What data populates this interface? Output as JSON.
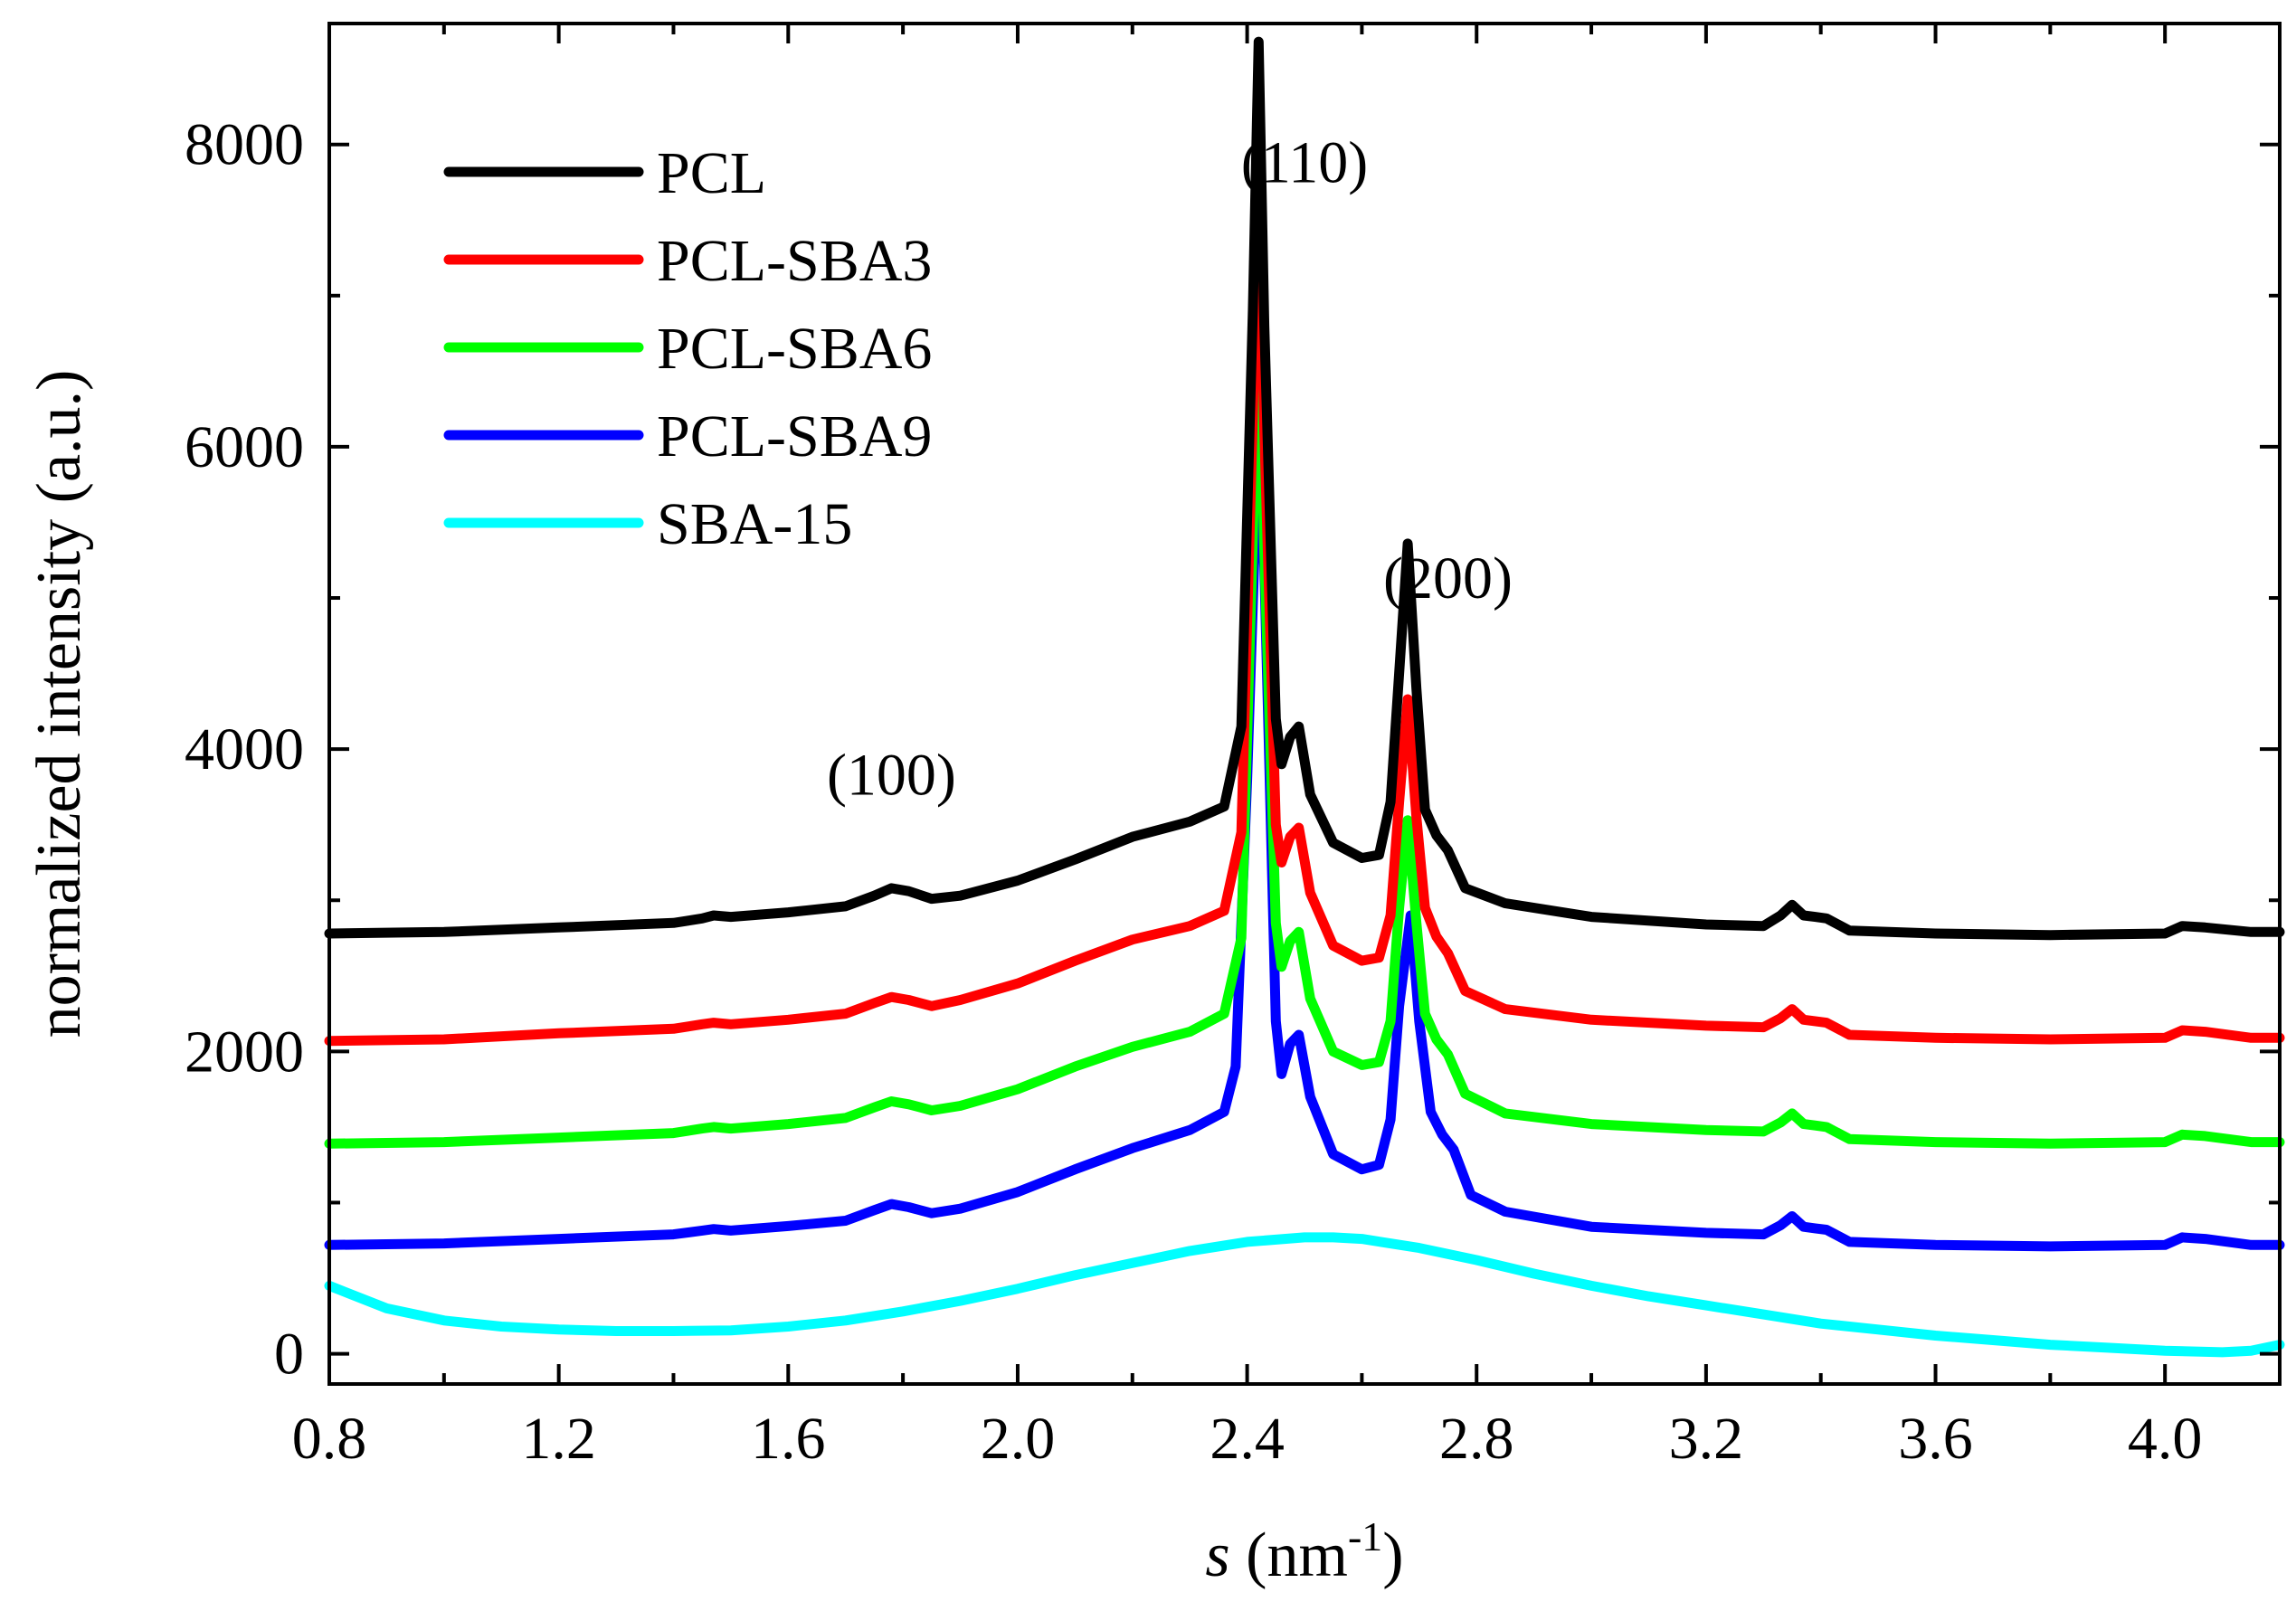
{
  "chart_data": {
    "type": "line",
    "xlabel_italic": "s",
    "xlabel_rest": " (nm",
    "xlabel_sup": "-1",
    "xlabel_close": ")",
    "ylabel": "normalized intensity (a.u.)",
    "xlim": [
      0.8,
      4.2
    ],
    "ylim": [
      -200,
      8800
    ],
    "xticks": [
      0.8,
      1.2,
      1.6,
      2.0,
      2.4,
      2.8,
      3.2,
      3.6,
      4.0
    ],
    "xtick_labels": [
      "0.8",
      "1.2",
      "1.6",
      "2.0",
      "2.4",
      "2.8",
      "3.2",
      "3.6",
      "4.0"
    ],
    "yticks": [
      0,
      2000,
      4000,
      6000,
      8000
    ],
    "ytick_labels": [
      "0",
      "2000",
      "4000",
      "6000",
      "8000"
    ],
    "legend_position": "top-left",
    "annotations": [
      {
        "text": "(100)",
        "x": 1.78,
        "y": 3700
      },
      {
        "text": "(110)",
        "x": 2.5,
        "y": 7750
      },
      {
        "text": "(200)",
        "x": 2.75,
        "y": 5000
      }
    ],
    "series": [
      {
        "name": "PCL",
        "color": "#000000",
        "points": [
          [
            0.8,
            2780
          ],
          [
            1.0,
            2790
          ],
          [
            1.2,
            2820
          ],
          [
            1.4,
            2850
          ],
          [
            1.45,
            2880
          ],
          [
            1.47,
            2900
          ],
          [
            1.5,
            2890
          ],
          [
            1.6,
            2920
          ],
          [
            1.7,
            2960
          ],
          [
            1.75,
            3030
          ],
          [
            1.78,
            3080
          ],
          [
            1.81,
            3060
          ],
          [
            1.85,
            3010
          ],
          [
            1.9,
            3030
          ],
          [
            2.0,
            3130
          ],
          [
            2.1,
            3270
          ],
          [
            2.2,
            3420
          ],
          [
            2.3,
            3520
          ],
          [
            2.36,
            3620
          ],
          [
            2.39,
            4150
          ],
          [
            2.41,
            6900
          ],
          [
            2.42,
            8680
          ],
          [
            2.43,
            6800
          ],
          [
            2.45,
            4200
          ],
          [
            2.46,
            3900
          ],
          [
            2.475,
            4080
          ],
          [
            2.49,
            4150
          ],
          [
            2.51,
            3700
          ],
          [
            2.55,
            3380
          ],
          [
            2.6,
            3280
          ],
          [
            2.63,
            3300
          ],
          [
            2.65,
            3650
          ],
          [
            2.665,
            4500
          ],
          [
            2.68,
            5360
          ],
          [
            2.695,
            4400
          ],
          [
            2.71,
            3600
          ],
          [
            2.73,
            3430
          ],
          [
            2.75,
            3330
          ],
          [
            2.78,
            3080
          ],
          [
            2.85,
            2980
          ],
          [
            3.0,
            2890
          ],
          [
            3.2,
            2840
          ],
          [
            3.3,
            2830
          ],
          [
            3.33,
            2900
          ],
          [
            3.35,
            2970
          ],
          [
            3.37,
            2900
          ],
          [
            3.39,
            2890
          ],
          [
            3.41,
            2880
          ],
          [
            3.45,
            2800
          ],
          [
            3.6,
            2780
          ],
          [
            3.8,
            2770
          ],
          [
            4.0,
            2780
          ],
          [
            4.03,
            2830
          ],
          [
            4.07,
            2820
          ],
          [
            4.15,
            2790
          ],
          [
            4.2,
            2790
          ]
        ]
      },
      {
        "name": "PCL-SBA3",
        "color": "#ff0000",
        "points": [
          [
            0.8,
            2070
          ],
          [
            1.0,
            2080
          ],
          [
            1.2,
            2120
          ],
          [
            1.4,
            2150
          ],
          [
            1.45,
            2180
          ],
          [
            1.47,
            2190
          ],
          [
            1.5,
            2180
          ],
          [
            1.6,
            2210
          ],
          [
            1.7,
            2250
          ],
          [
            1.75,
            2320
          ],
          [
            1.78,
            2360
          ],
          [
            1.81,
            2340
          ],
          [
            1.85,
            2300
          ],
          [
            1.9,
            2340
          ],
          [
            2.0,
            2450
          ],
          [
            2.1,
            2600
          ],
          [
            2.2,
            2740
          ],
          [
            2.3,
            2830
          ],
          [
            2.36,
            2930
          ],
          [
            2.39,
            3450
          ],
          [
            2.41,
            6200
          ],
          [
            2.42,
            7900
          ],
          [
            2.43,
            6100
          ],
          [
            2.45,
            3500
          ],
          [
            2.46,
            3250
          ],
          [
            2.475,
            3420
          ],
          [
            2.49,
            3480
          ],
          [
            2.51,
            3050
          ],
          [
            2.55,
            2700
          ],
          [
            2.6,
            2600
          ],
          [
            2.63,
            2620
          ],
          [
            2.65,
            2900
          ],
          [
            2.665,
            3650
          ],
          [
            2.68,
            4330
          ],
          [
            2.695,
            3550
          ],
          [
            2.71,
            2950
          ],
          [
            2.73,
            2760
          ],
          [
            2.75,
            2650
          ],
          [
            2.78,
            2400
          ],
          [
            2.85,
            2280
          ],
          [
            3.0,
            2210
          ],
          [
            3.2,
            2170
          ],
          [
            3.3,
            2160
          ],
          [
            3.33,
            2220
          ],
          [
            3.35,
            2280
          ],
          [
            3.37,
            2210
          ],
          [
            3.39,
            2200
          ],
          [
            3.41,
            2190
          ],
          [
            3.45,
            2110
          ],
          [
            3.6,
            2090
          ],
          [
            3.8,
            2080
          ],
          [
            4.0,
            2090
          ],
          [
            4.03,
            2140
          ],
          [
            4.07,
            2130
          ],
          [
            4.15,
            2090
          ],
          [
            4.2,
            2090
          ]
        ]
      },
      {
        "name": "PCL-SBA6",
        "color": "#00ff00",
        "points": [
          [
            0.8,
            1390
          ],
          [
            1.0,
            1400
          ],
          [
            1.2,
            1430
          ],
          [
            1.4,
            1460
          ],
          [
            1.45,
            1490
          ],
          [
            1.47,
            1500
          ],
          [
            1.5,
            1490
          ],
          [
            1.6,
            1520
          ],
          [
            1.7,
            1560
          ],
          [
            1.75,
            1630
          ],
          [
            1.78,
            1670
          ],
          [
            1.81,
            1650
          ],
          [
            1.85,
            1610
          ],
          [
            1.9,
            1640
          ],
          [
            2.0,
            1750
          ],
          [
            2.1,
            1900
          ],
          [
            2.2,
            2030
          ],
          [
            2.3,
            2130
          ],
          [
            2.36,
            2250
          ],
          [
            2.39,
            2750
          ],
          [
            2.41,
            5400
          ],
          [
            2.42,
            6950
          ],
          [
            2.43,
            5300
          ],
          [
            2.45,
            2850
          ],
          [
            2.46,
            2560
          ],
          [
            2.475,
            2730
          ],
          [
            2.49,
            2790
          ],
          [
            2.51,
            2350
          ],
          [
            2.55,
            2000
          ],
          [
            2.6,
            1910
          ],
          [
            2.63,
            1930
          ],
          [
            2.65,
            2200
          ],
          [
            2.665,
            2950
          ],
          [
            2.68,
            3530
          ],
          [
            2.695,
            2850
          ],
          [
            2.71,
            2250
          ],
          [
            2.73,
            2080
          ],
          [
            2.75,
            1980
          ],
          [
            2.78,
            1720
          ],
          [
            2.85,
            1590
          ],
          [
            3.0,
            1520
          ],
          [
            3.2,
            1480
          ],
          [
            3.3,
            1470
          ],
          [
            3.33,
            1530
          ],
          [
            3.35,
            1590
          ],
          [
            3.37,
            1520
          ],
          [
            3.39,
            1510
          ],
          [
            3.41,
            1500
          ],
          [
            3.45,
            1420
          ],
          [
            3.6,
            1400
          ],
          [
            3.8,
            1390
          ],
          [
            4.0,
            1400
          ],
          [
            4.03,
            1450
          ],
          [
            4.07,
            1440
          ],
          [
            4.15,
            1400
          ],
          [
            4.2,
            1400
          ]
        ]
      },
      {
        "name": "PCL-SBA9",
        "color": "#0000ff",
        "points": [
          [
            0.8,
            720
          ],
          [
            1.0,
            730
          ],
          [
            1.2,
            760
          ],
          [
            1.4,
            790
          ],
          [
            1.45,
            815
          ],
          [
            1.47,
            825
          ],
          [
            1.5,
            815
          ],
          [
            1.6,
            845
          ],
          [
            1.7,
            880
          ],
          [
            1.75,
            950
          ],
          [
            1.78,
            990
          ],
          [
            1.81,
            970
          ],
          [
            1.85,
            930
          ],
          [
            1.9,
            960
          ],
          [
            2.0,
            1070
          ],
          [
            2.1,
            1220
          ],
          [
            2.2,
            1360
          ],
          [
            2.3,
            1480
          ],
          [
            2.36,
            1600
          ],
          [
            2.38,
            1900
          ],
          [
            2.4,
            3800
          ],
          [
            2.42,
            6150
          ],
          [
            2.43,
            5200
          ],
          [
            2.45,
            2200
          ],
          [
            2.46,
            1850
          ],
          [
            2.475,
            2050
          ],
          [
            2.49,
            2110
          ],
          [
            2.51,
            1700
          ],
          [
            2.55,
            1320
          ],
          [
            2.6,
            1220
          ],
          [
            2.63,
            1250
          ],
          [
            2.65,
            1550
          ],
          [
            2.665,
            2300
          ],
          [
            2.685,
            2900
          ],
          [
            2.7,
            2200
          ],
          [
            2.72,
            1600
          ],
          [
            2.74,
            1450
          ],
          [
            2.76,
            1350
          ],
          [
            2.79,
            1050
          ],
          [
            2.85,
            940
          ],
          [
            3.0,
            840
          ],
          [
            3.2,
            800
          ],
          [
            3.3,
            790
          ],
          [
            3.33,
            850
          ],
          [
            3.35,
            910
          ],
          [
            3.37,
            840
          ],
          [
            3.39,
            830
          ],
          [
            3.41,
            820
          ],
          [
            3.45,
            740
          ],
          [
            3.6,
            720
          ],
          [
            3.8,
            710
          ],
          [
            4.0,
            720
          ],
          [
            4.03,
            770
          ],
          [
            4.07,
            760
          ],
          [
            4.15,
            720
          ],
          [
            4.2,
            720
          ]
        ]
      },
      {
        "name": "SBA-15",
        "color": "#00ffff",
        "points": [
          [
            0.8,
            450
          ],
          [
            0.9,
            300
          ],
          [
            1.0,
            220
          ],
          [
            1.1,
            180
          ],
          [
            1.2,
            160
          ],
          [
            1.3,
            150
          ],
          [
            1.4,
            150
          ],
          [
            1.5,
            155
          ],
          [
            1.6,
            180
          ],
          [
            1.7,
            220
          ],
          [
            1.8,
            280
          ],
          [
            1.9,
            350
          ],
          [
            2.0,
            430
          ],
          [
            2.1,
            520
          ],
          [
            2.2,
            600
          ],
          [
            2.3,
            680
          ],
          [
            2.4,
            740
          ],
          [
            2.5,
            770
          ],
          [
            2.55,
            770
          ],
          [
            2.6,
            760
          ],
          [
            2.7,
            700
          ],
          [
            2.8,
            620
          ],
          [
            2.9,
            530
          ],
          [
            3.0,
            450
          ],
          [
            3.1,
            380
          ],
          [
            3.2,
            320
          ],
          [
            3.3,
            260
          ],
          [
            3.4,
            200
          ],
          [
            3.5,
            160
          ],
          [
            3.6,
            120
          ],
          [
            3.7,
            90
          ],
          [
            3.8,
            60
          ],
          [
            3.9,
            40
          ],
          [
            4.0,
            20
          ],
          [
            4.1,
            10
          ],
          [
            4.15,
            20
          ],
          [
            4.2,
            60
          ]
        ]
      }
    ]
  }
}
